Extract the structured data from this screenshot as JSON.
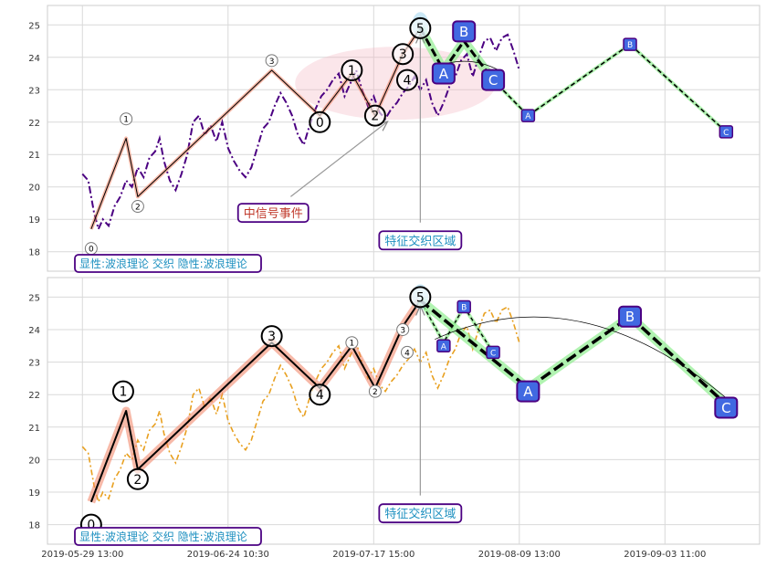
{
  "chart_data": [
    {
      "type": "line",
      "panel": "top",
      "ylim": [
        17.4,
        25.6
      ],
      "y_ticks": [
        18,
        19,
        20,
        21,
        22,
        23,
        24,
        25
      ],
      "grid": true,
      "price_color": "#4b0082",
      "price_series": [
        [
          0,
          20.4
        ],
        [
          0.4,
          20.2
        ],
        [
          0.8,
          19.2
        ],
        [
          1.1,
          18.7
        ],
        [
          1.4,
          19.0
        ],
        [
          1.8,
          18.8
        ],
        [
          2.2,
          19.4
        ],
        [
          2.6,
          19.7
        ],
        [
          3.0,
          20.2
        ],
        [
          3.4,
          20.0
        ],
        [
          3.8,
          20.6
        ],
        [
          4.2,
          20.3
        ],
        [
          4.6,
          20.9
        ],
        [
          5.0,
          21.1
        ],
        [
          5.3,
          21.5
        ],
        [
          5.6,
          20.8
        ],
        [
          6.0,
          20.2
        ],
        [
          6.4,
          19.9
        ],
        [
          6.8,
          20.4
        ],
        [
          7.2,
          21.0
        ],
        [
          7.6,
          22.0
        ],
        [
          8.0,
          22.2
        ],
        [
          8.4,
          21.6
        ],
        [
          8.8,
          21.9
        ],
        [
          9.2,
          21.4
        ],
        [
          9.6,
          22.0
        ],
        [
          10.0,
          21.2
        ],
        [
          10.4,
          20.8
        ],
        [
          10.8,
          20.5
        ],
        [
          11.2,
          20.3
        ],
        [
          11.6,
          20.6
        ],
        [
          12.0,
          21.2
        ],
        [
          12.4,
          21.8
        ],
        [
          12.8,
          22.0
        ],
        [
          13.2,
          22.5
        ],
        [
          13.6,
          22.9
        ],
        [
          14.0,
          22.6
        ],
        [
          14.4,
          22.2
        ],
        [
          14.8,
          21.6
        ],
        [
          15.2,
          21.3
        ],
        [
          15.6,
          21.9
        ],
        [
          16.0,
          22.4
        ],
        [
          16.4,
          22.8
        ],
        [
          16.8,
          23.0
        ],
        [
          17.2,
          23.3
        ],
        [
          17.6,
          23.5
        ],
        [
          18.0,
          22.8
        ],
        [
          18.4,
          23.2
        ],
        [
          18.8,
          23.6
        ],
        [
          19.2,
          23.0
        ],
        [
          19.6,
          22.5
        ],
        [
          20.0,
          22.8
        ],
        [
          20.4,
          22.3
        ],
        [
          20.8,
          22.1
        ],
        [
          21.2,
          22.4
        ],
        [
          21.6,
          22.6
        ],
        [
          22.0,
          22.9
        ],
        [
          22.4,
          23.1
        ],
        [
          22.8,
          23.4
        ],
        [
          23.2,
          23.0
        ],
        [
          23.6,
          23.3
        ],
        [
          24.0,
          22.6
        ],
        [
          24.4,
          22.2
        ],
        [
          24.8,
          22.6
        ],
        [
          25.2,
          23.1
        ],
        [
          25.6,
          23.4
        ],
        [
          26.0,
          23.9
        ],
        [
          26.4,
          24.1
        ],
        [
          26.8,
          23.4
        ],
        [
          27.2,
          24.0
        ],
        [
          27.6,
          24.5
        ],
        [
          28.0,
          24.6
        ],
        [
          28.4,
          24.2
        ],
        [
          28.8,
          24.6
        ],
        [
          29.2,
          24.7
        ],
        [
          29.6,
          24.2
        ],
        [
          30.0,
          23.6
        ]
      ],
      "wave_path": [
        [
          0.6,
          18.7
        ],
        [
          3.0,
          21.5
        ],
        [
          3.8,
          19.7
        ],
        [
          13.0,
          23.6
        ],
        [
          16.3,
          22.2
        ],
        [
          18.5,
          23.5
        ],
        [
          20.1,
          22.2
        ],
        [
          22.0,
          24.1
        ],
        [
          23.2,
          24.9
        ]
      ],
      "wave_labels": [
        {
          "label": "0",
          "x": 0.6,
          "y": 18.1,
          "size": "small"
        },
        {
          "label": "1",
          "x": 3.0,
          "y": 22.1,
          "size": "small"
        },
        {
          "label": "2",
          "x": 3.8,
          "y": 19.4,
          "size": "small"
        },
        {
          "label": "3",
          "x": 13.0,
          "y": 23.9,
          "size": "small"
        },
        {
          "label": "0",
          "x": 16.3,
          "y": 22.0,
          "size": "large"
        },
        {
          "label": "1",
          "x": 18.5,
          "y": 23.6,
          "size": "large"
        },
        {
          "label": "2",
          "x": 20.1,
          "y": 22.2,
          "size": "large"
        },
        {
          "label": "3",
          "x": 22.0,
          "y": 24.1,
          "size": "large"
        },
        {
          "label": "4",
          "x": 22.3,
          "y": 23.3,
          "size": "large"
        },
        {
          "label": "5",
          "x": 23.2,
          "y": 24.9,
          "size": "large"
        }
      ],
      "forecast_small": [
        [
          23.2,
          24.9
        ],
        [
          24.8,
          23.6
        ],
        [
          26.2,
          24.5
        ],
        [
          28.2,
          23.3
        ]
      ],
      "forecast_large": [
        [
          28.2,
          23.3
        ],
        [
          30.6,
          22.2
        ],
        [
          37.6,
          24.4
        ],
        [
          44.2,
          21.7
        ]
      ],
      "forecast_labels": [
        {
          "label": "A",
          "x": 24.8,
          "y": 23.5,
          "size": "large"
        },
        {
          "label": "B",
          "x": 26.2,
          "y": 24.8,
          "size": "large"
        },
        {
          "label": "C",
          "x": 28.2,
          "y": 23.3,
          "size": "large"
        },
        {
          "label": "A",
          "x": 30.6,
          "y": 22.2,
          "size": "small"
        },
        {
          "label": "B",
          "x": 37.6,
          "y": 24.4,
          "size": "small"
        },
        {
          "label": "C",
          "x": 44.2,
          "y": 21.7,
          "size": "small"
        }
      ],
      "annotations": [
        {
          "text": "中信号事件",
          "x": 13.1,
          "y": 19.2
        },
        {
          "text": "特征交织区域",
          "x": 23.2,
          "y": 18.35
        }
      ],
      "caption": "显性:波浪理论 交织 隐性:波浪理论"
    },
    {
      "type": "line",
      "panel": "bottom",
      "ylim": [
        17.4,
        25.6
      ],
      "y_ticks": [
        18,
        19,
        20,
        21,
        22,
        23,
        24,
        25
      ],
      "grid": true,
      "price_color": "#e8a020",
      "wave_path": [
        [
          0.6,
          18.7
        ],
        [
          3.0,
          21.5
        ],
        [
          3.8,
          19.7
        ],
        [
          13.0,
          23.6
        ],
        [
          16.3,
          22.2
        ],
        [
          18.5,
          23.5
        ],
        [
          20.1,
          22.2
        ],
        [
          22.0,
          24.1
        ],
        [
          23.2,
          24.9
        ]
      ],
      "wave_labels": [
        {
          "label": "0",
          "x": 0.6,
          "y": 18.0,
          "size": "large"
        },
        {
          "label": "1",
          "x": 2.8,
          "y": 22.1,
          "size": "large"
        },
        {
          "label": "2",
          "x": 3.8,
          "y": 19.4,
          "size": "large"
        },
        {
          "label": "3",
          "x": 13.0,
          "y": 23.8,
          "size": "large"
        },
        {
          "label": "4",
          "x": 16.3,
          "y": 22.0,
          "size": "large"
        },
        {
          "label": "1",
          "x": 18.5,
          "y": 23.6,
          "size": "small"
        },
        {
          "label": "2",
          "x": 20.1,
          "y": 22.1,
          "size": "small"
        },
        {
          "label": "3",
          "x": 22.0,
          "y": 24.0,
          "size": "small"
        },
        {
          "label": "4",
          "x": 22.3,
          "y": 23.3,
          "size": "small"
        },
        {
          "label": "5",
          "x": 23.2,
          "y": 25.0,
          "size": "large"
        }
      ],
      "forecast_small": [
        [
          23.2,
          24.9
        ],
        [
          24.8,
          23.6
        ],
        [
          26.2,
          24.7
        ],
        [
          28.2,
          23.3
        ]
      ],
      "forecast_large": [
        [
          23.2,
          24.9
        ],
        [
          30.6,
          22.2
        ],
        [
          37.6,
          24.4
        ],
        [
          44.2,
          21.7
        ]
      ],
      "forecast_labels": [
        {
          "label": "A",
          "x": 24.8,
          "y": 23.5,
          "size": "small"
        },
        {
          "label": "B",
          "x": 26.2,
          "y": 24.7,
          "size": "small"
        },
        {
          "label": "C",
          "x": 28.2,
          "y": 23.3,
          "size": "small"
        },
        {
          "label": "A",
          "x": 30.6,
          "y": 22.1,
          "size": "large"
        },
        {
          "label": "B",
          "x": 37.6,
          "y": 24.4,
          "size": "large"
        },
        {
          "label": "C",
          "x": 44.2,
          "y": 21.6,
          "size": "large"
        }
      ],
      "annotations": [
        {
          "text": "特征交织区域",
          "x": 23.2,
          "y": 18.35
        }
      ],
      "caption": "显性:波浪理论 交织 隐性:波浪理论"
    }
  ],
  "x_tick_labels": [
    {
      "text": "2019-05-29 13:00",
      "pos": -2.4
    },
    {
      "text": "2019-06-24 10:30",
      "pos": 7.6
    },
    {
      "text": "2019-07-17 15:00",
      "pos": 17.6
    },
    {
      "text": "2019-08-09 13:00",
      "pos": 27.6
    },
    {
      "text": "2019-09-03 11:00",
      "pos": 37.6
    }
  ],
  "colors": {
    "label_box_fill": "#4169e1",
    "label_box_stroke": "#4b0082",
    "wave_highlight": "#f08060",
    "forecast_highlight": "#90ee90",
    "annotation_red": "#c0392b",
    "annotation_blue": "#1e90c0",
    "caption_blue": "#1e90c0"
  }
}
